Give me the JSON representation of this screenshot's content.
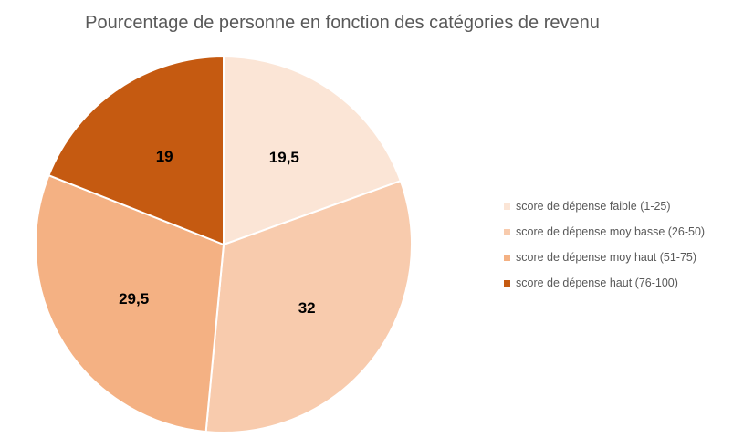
{
  "chart_data": {
    "type": "pie",
    "title": "Pourcentage de personne en fonction des catégories  de revenu",
    "categories": [
      "score de dépense faible (1-25)",
      "score de dépense moy basse (26-50)",
      "score de dépense moy haut (51-75)",
      "score de dépense haut (76-100)"
    ],
    "values": [
      19.5,
      32,
      29.5,
      19
    ],
    "data_labels": [
      "19,5",
      "32",
      "29,5",
      "19"
    ],
    "colors": [
      "#FBE5D6",
      "#F8CBAD",
      "#F4B183",
      "#C55A11"
    ],
    "legend_position": "right"
  }
}
